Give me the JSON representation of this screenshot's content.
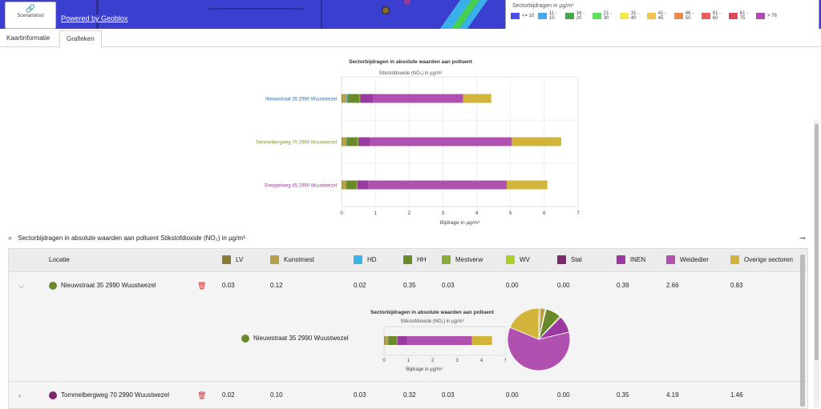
{
  "map": {
    "scenario_label": "Scenariotool",
    "powered_by": "Powered by Geoblox",
    "legend_title": "Sectorbijdragen in µg/m³",
    "legend": [
      {
        "label": "<= 10",
        "color": "#4a4ee8"
      },
      {
        "label": "11 - 15",
        "color": "#49a7ee"
      },
      {
        "label": "16 - 20",
        "color": "#43a94a"
      },
      {
        "label": "21 - 30",
        "color": "#59e35a"
      },
      {
        "label": "31 - 40",
        "color": "#f2e84a"
      },
      {
        "label": "41 - 45",
        "color": "#f2c24a"
      },
      {
        "label": "46 - 50",
        "color": "#ef8a4a"
      },
      {
        "label": "51 - 60",
        "color": "#ef5a5a"
      },
      {
        "label": "61 - 75",
        "color": "#df4a5a"
      },
      {
        "label": "> 76",
        "color": "#b04ab4"
      }
    ]
  },
  "tabs": [
    "Kaartinformatie",
    "Grafieken"
  ],
  "chart_data": [
    {
      "type": "bar",
      "title": "Sectorbijdragen in absolute waarden aan polluent",
      "subtitle": "Stikstofdioxide (NO₂) in µg/m³",
      "xlabel": "Bijdrage in µg/m³",
      "xlim": [
        0,
        7
      ],
      "xticks": [
        0,
        1,
        2,
        3,
        4,
        5,
        6,
        7
      ],
      "stacked": true,
      "orientation": "horizontal",
      "categories": [
        "Nieuwstraat 35 2990 Wuustwezel",
        "Tommelbergweg 70 2990 Wuustwezel",
        "Sneppelweg 45 2990 Wuustwezel"
      ],
      "category_colors": [
        "#2a6fb5",
        "#7a9a2a",
        "#9a3a9a"
      ],
      "series": [
        {
          "name": "LV",
          "color": "#8a7a3a",
          "values": [
            0.03,
            0.02,
            0.02
          ]
        },
        {
          "name": "Kunstmest",
          "color": "#b8a04a",
          "values": [
            0.12,
            0.1,
            0.1
          ]
        },
        {
          "name": "HD",
          "color": "#3ab4e8",
          "values": [
            0.02,
            0.03,
            0.02
          ]
        },
        {
          "name": "HH",
          "color": "#6a8a2a",
          "values": [
            0.35,
            0.32,
            0.3
          ]
        },
        {
          "name": "Mestverw",
          "color": "#8aaa3a",
          "values": [
            0.03,
            0.03,
            0.03
          ]
        },
        {
          "name": "WV",
          "color": "#aad02a",
          "values": [
            0.0,
            0.0,
            0.0
          ]
        },
        {
          "name": "Stal",
          "color": "#7a2a6a",
          "values": [
            0.0,
            0.0,
            0.0
          ]
        },
        {
          "name": "INEN",
          "color": "#9a3aa0",
          "values": [
            0.39,
            0.35,
            0.33
          ]
        },
        {
          "name": "Weidedier",
          "color": "#b050b0",
          "values": [
            2.66,
            4.19,
            4.09
          ]
        },
        {
          "name": "Overige sectoren",
          "color": "#d2b43a",
          "values": [
            0.83,
            1.46,
            1.2
          ]
        }
      ]
    },
    {
      "type": "bar",
      "title": "Sectorbijdragen in absolute waarden aan polluent",
      "subtitle": "Stikstofdioxide (NO₂) in µg/m³",
      "xlabel": "Bijdrage in µg/m³",
      "xlim": [
        0,
        5
      ],
      "xticks": [
        0,
        1,
        2,
        3,
        4,
        5
      ],
      "stacked": true,
      "orientation": "horizontal",
      "categories": [
        "Nieuwstraat 35 2990 Wuustwezel"
      ],
      "series_ref": "Nieuwstraat"
    },
    {
      "type": "pie",
      "labels": [
        "LV",
        "Kunstmest",
        "HD",
        "HH",
        "Mestverw",
        "WV",
        "Stal",
        "INEN",
        "Weidedier",
        "Overige sectoren"
      ],
      "values": [
        0.03,
        0.12,
        0.02,
        0.35,
        0.03,
        0.0,
        0.0,
        0.39,
        2.66,
        0.83
      ]
    }
  ],
  "section": {
    "title": "Sectorbijdragen in absolute waarden aan polluent Stikstofdioxide (NO₂) in µg/m³"
  },
  "table": {
    "location_header": "Locatie",
    "columns": [
      {
        "label": "LV",
        "color": "#8a7a3a"
      },
      {
        "label": "Kunstmest",
        "color": "#b8a04a"
      },
      {
        "label": "HD",
        "color": "#3ab4e8"
      },
      {
        "label": "HH",
        "color": "#6a8a2a"
      },
      {
        "label": "Mestverw",
        "color": "#8aaa3a"
      },
      {
        "label": "WV",
        "color": "#aad02a"
      },
      {
        "label": "Stal",
        "color": "#7a2a6a"
      },
      {
        "label": "INEN",
        "color": "#9a3aa0"
      },
      {
        "label": "Weidedier",
        "color": "#b050b0"
      },
      {
        "label": "Overige sectoren",
        "color": "#d2b43a"
      }
    ],
    "rows": [
      {
        "location": "Nieuwstraat 35 2990 Wuustwezel",
        "dot_color": "#6a8a2a",
        "expanded": true,
        "values": [
          "0.03",
          "0.12",
          "0.02",
          "0.35",
          "0.03",
          "0.00",
          "0.00",
          "0.39",
          "2.66",
          "0.83"
        ]
      },
      {
        "location": "Tommelbergweg 70 2990 Wuustwezel",
        "dot_color": "#7a2a6a",
        "expanded": false,
        "values": [
          "0.02",
          "0.10",
          "0.03",
          "0.32",
          "0.03",
          "0.00",
          "0.00",
          "0.35",
          "4.19",
          "1.46"
        ]
      }
    ]
  }
}
